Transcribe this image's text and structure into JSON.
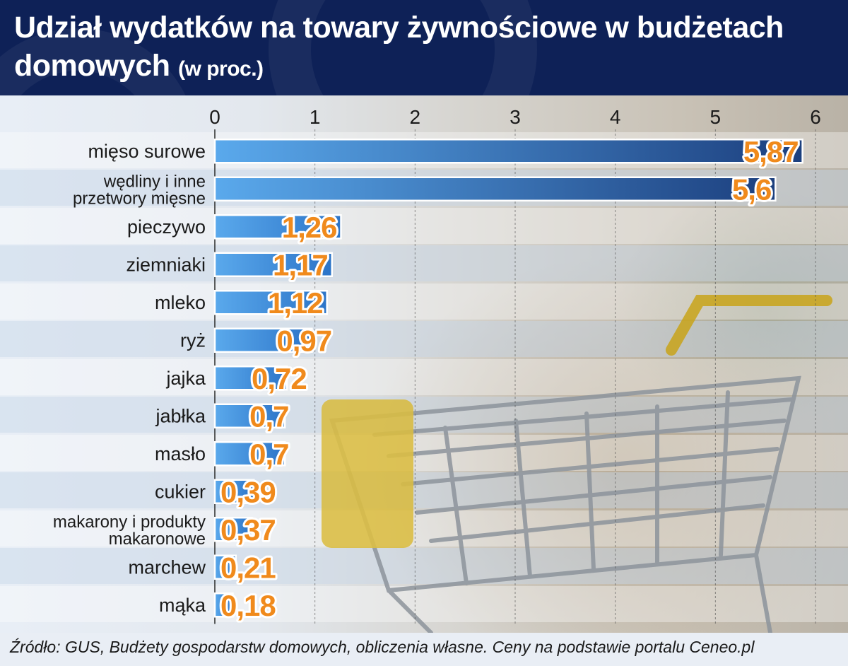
{
  "title": "Udział wydatków na towary żywnościowe w budżetach",
  "title_line2": "domowych",
  "title_suffix": "(w proc.)",
  "source": "Źródło: GUS, Budżety gospodarstw domowych, obliczenia własne. Ceny na podstawie portalu Ceneo.pl",
  "colors": {
    "header_bg": "#0e2157",
    "bar_light": "#5aa9ec",
    "bar_dark": "#1c3f7e",
    "value_label": "#f08a1c"
  },
  "chart_data": {
    "type": "bar",
    "orientation": "horizontal",
    "xlim": [
      0,
      6
    ],
    "xticks": [
      0,
      1,
      2,
      3,
      4,
      5,
      6
    ],
    "grid": true,
    "categories": [
      [
        "mięso surowe"
      ],
      [
        "wędliny i inne",
        "przetwory mięsne"
      ],
      [
        "pieczywo"
      ],
      [
        "ziemniaki"
      ],
      [
        "mleko"
      ],
      [
        "ryż"
      ],
      [
        "jajka"
      ],
      [
        "jabłka"
      ],
      [
        "masło"
      ],
      [
        "cukier"
      ],
      [
        "makarony i produkty",
        "makaronowe"
      ],
      [
        "marchew"
      ],
      [
        "mąka"
      ]
    ],
    "values": [
      5.87,
      5.6,
      1.26,
      1.17,
      1.12,
      0.97,
      0.72,
      0.7,
      0.7,
      0.39,
      0.37,
      0.21,
      0.18
    ],
    "value_labels": [
      "5,87",
      "5,6",
      "1,26",
      "1,17",
      "1,12",
      "0,97",
      "0,72",
      "0,7",
      "0,7",
      "0,39",
      "0,37",
      "0,21",
      "0,18"
    ]
  }
}
